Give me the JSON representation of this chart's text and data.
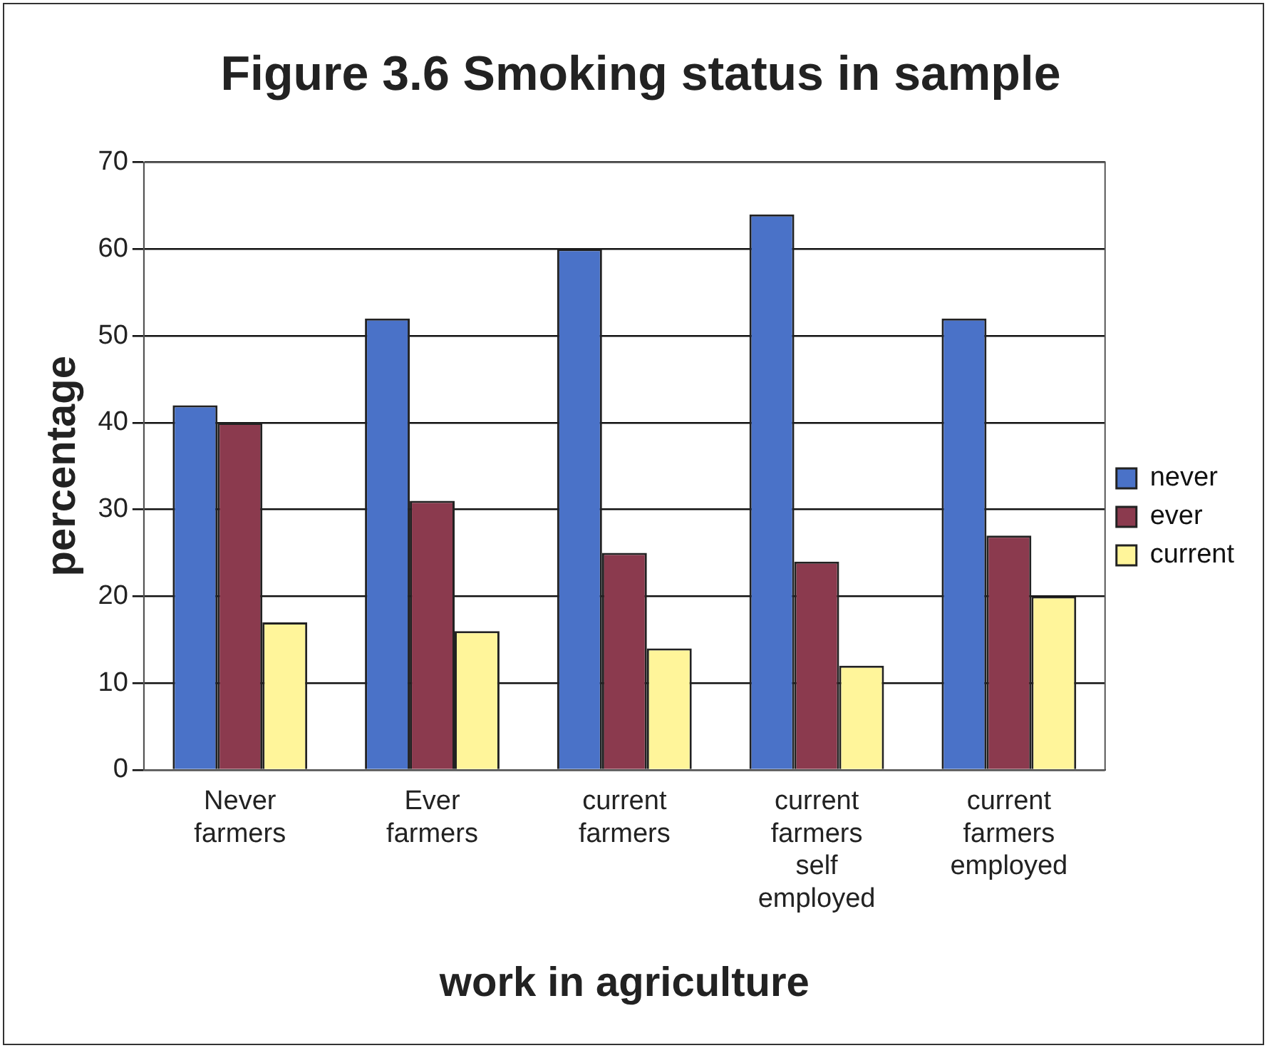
{
  "chart_data": {
    "type": "bar",
    "title": "Figure 3.6 Smoking status in sample",
    "xlabel": "work in agriculture",
    "ylabel": "percentage",
    "categories": [
      "Never farmers",
      "Ever farmers",
      "current farmers",
      "current farmers self employed",
      "current farmers employed"
    ],
    "series": [
      {
        "name": "never",
        "color": "#4a72c8",
        "values": [
          42,
          52,
          60,
          64,
          52
        ]
      },
      {
        "name": "ever",
        "color": "#8b3a4e",
        "values": [
          40,
          31,
          25,
          24,
          27
        ]
      },
      {
        "name": "current",
        "color": "#fff59a",
        "values": [
          17,
          16,
          14,
          12,
          20
        ]
      }
    ],
    "ylim": [
      0,
      70
    ],
    "yticks": [
      0,
      10,
      20,
      30,
      40,
      50,
      60,
      70
    ],
    "grid": "y",
    "legend": "right"
  }
}
